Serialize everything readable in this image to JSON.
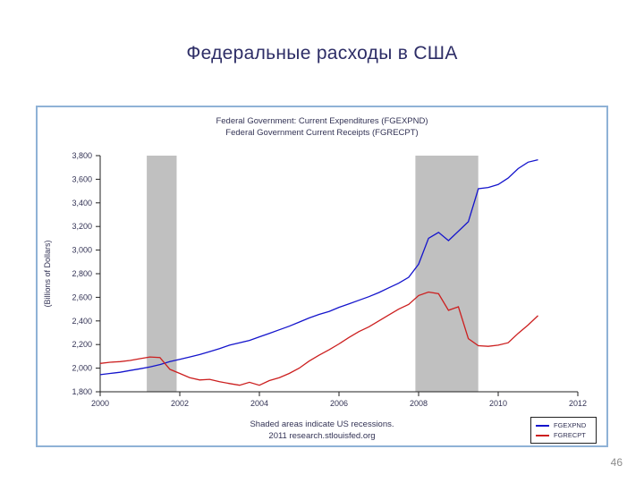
{
  "slide": {
    "title": "Федеральные расходы в США",
    "page_number": "46"
  },
  "chart": {
    "title_line1": "Federal Government: Current Expenditures (FGEXPND)",
    "title_line2": "Federal Government Current Receipts (FGRECPT)",
    "footnote_line1": "Shaded areas indicate US recessions.",
    "footnote_line2": "2011 research.stlouisfed.org"
  },
  "palette": {
    "title-color": "#2d2d66",
    "chart-text": "#333355",
    "frame-border": "#8fb2d6",
    "axis-color": "#222222",
    "page-number-color": "#8c8c8c"
  },
  "chart_data": {
    "type": "line",
    "title": "Federal Government: Current Expenditures (FGEXPND) / Federal Government Current Receipts (FGRECPT)",
    "xlabel": "",
    "ylabel": "(Billions of Dollars)",
    "xlim": [
      2000,
      2012
    ],
    "ylim": [
      1800,
      3800
    ],
    "grid": false,
    "legend_position": "bottom-right",
    "xticks": [
      {
        "v": 2000,
        "label": "2000"
      },
      {
        "v": 2002,
        "label": "2002"
      },
      {
        "v": 2004,
        "label": "2004"
      },
      {
        "v": 2006,
        "label": "2006"
      },
      {
        "v": 2008,
        "label": "2008"
      },
      {
        "v": 2010,
        "label": "2010"
      },
      {
        "v": 2012,
        "label": "2012"
      }
    ],
    "yticks": [
      {
        "v": 1800,
        "label": "1,800"
      },
      {
        "v": 2000,
        "label": "2,000"
      },
      {
        "v": 2200,
        "label": "2,200"
      },
      {
        "v": 2400,
        "label": "2,400"
      },
      {
        "v": 2600,
        "label": "2,600"
      },
      {
        "v": 2800,
        "label": "2,800"
      },
      {
        "v": 3000,
        "label": "3,000"
      },
      {
        "v": 3200,
        "label": "3,200"
      },
      {
        "v": 3400,
        "label": "3,400"
      },
      {
        "v": 3600,
        "label": "3,600"
      },
      {
        "v": 3800,
        "label": "3,800"
      }
    ],
    "recessions": [
      [
        2001.17,
        2001.92
      ],
      [
        2007.92,
        2009.5
      ]
    ],
    "recession_color": "#c0c0c0",
    "x_start": 2000,
    "x_step": 0.25,
    "series": [
      {
        "name": "FGEXPND",
        "color": "#1414cc",
        "values": [
          1945,
          1955,
          1965,
          1980,
          1995,
          2010,
          2030,
          2055,
          2075,
          2095,
          2115,
          2140,
          2165,
          2195,
          2215,
          2235,
          2265,
          2295,
          2325,
          2355,
          2390,
          2425,
          2455,
          2480,
          2515,
          2545,
          2575,
          2605,
          2640,
          2680,
          2720,
          2770,
          2880,
          3100,
          3150,
          3080,
          3160,
          3240,
          3520,
          3530,
          3555,
          3610,
          3690,
          3745,
          3765
        ]
      },
      {
        "name": "FGRECPT",
        "color": "#cc1f1f",
        "values": [
          2040,
          2050,
          2055,
          2065,
          2080,
          2095,
          2090,
          1990,
          1955,
          1920,
          1900,
          1905,
          1885,
          1870,
          1855,
          1880,
          1855,
          1895,
          1920,
          1955,
          2000,
          2060,
          2110,
          2155,
          2205,
          2260,
          2310,
          2350,
          2400,
          2450,
          2500,
          2540,
          2615,
          2645,
          2630,
          2490,
          2520,
          2250,
          2190,
          2185,
          2195,
          2215,
          2295,
          2365,
          2445
        ]
      }
    ]
  }
}
